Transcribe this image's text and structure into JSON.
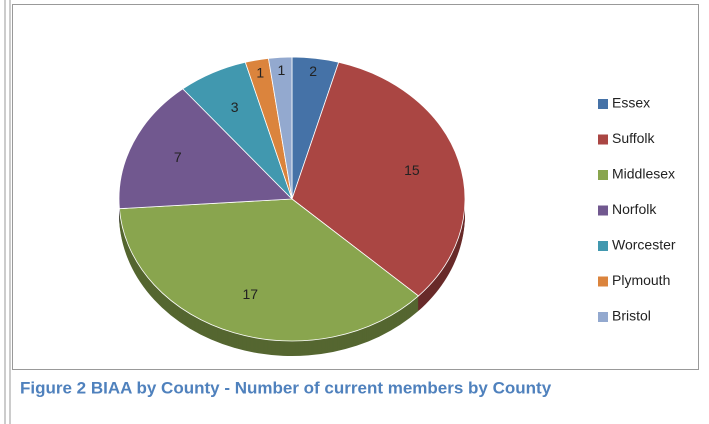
{
  "chart_data": {
    "type": "pie",
    "title": "Figure 2 BIAA by County - Number of current members by County",
    "categories": [
      "Essex",
      "Suffolk",
      "Middlesex",
      "Norfolk",
      "Worcester",
      "Plymouth",
      "Bristol"
    ],
    "values": [
      2,
      15,
      17,
      7,
      3,
      1,
      1
    ],
    "colors": [
      "#4572a7",
      "#aa4643",
      "#89a54e",
      "#71588f",
      "#4198af",
      "#db843d",
      "#93a9cf"
    ],
    "legend": "right"
  }
}
